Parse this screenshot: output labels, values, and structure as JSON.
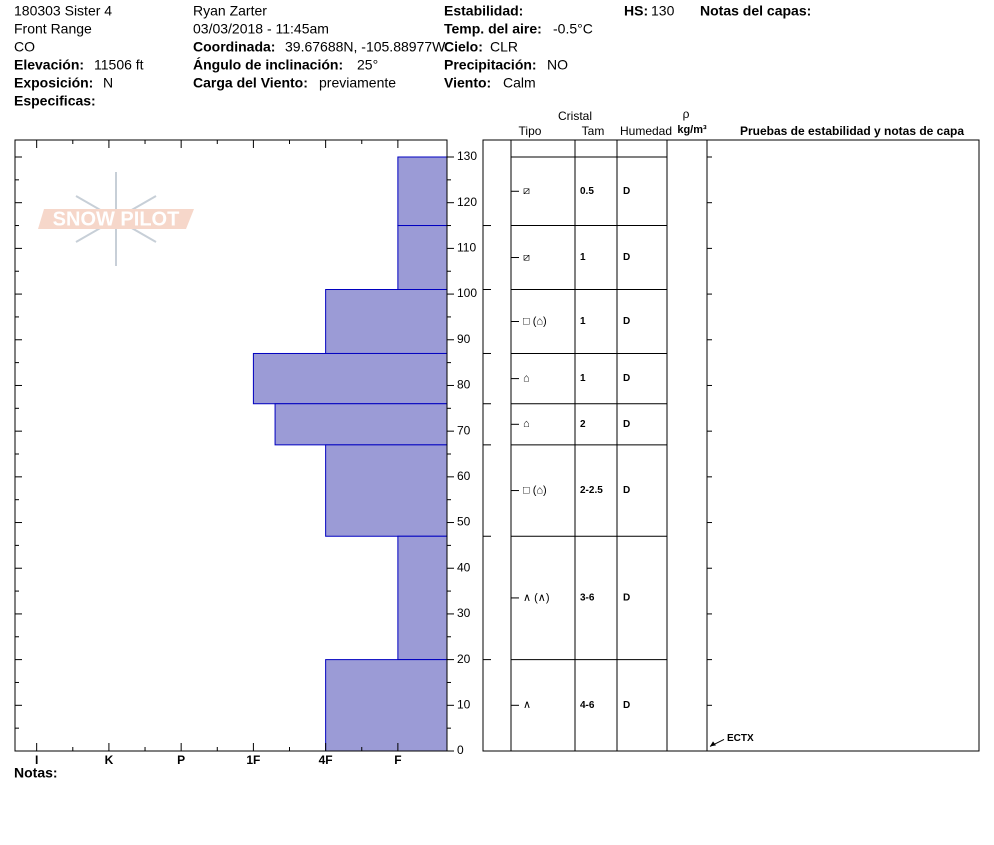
{
  "header": {
    "site": "180303 Sister 4",
    "range": "Front Range",
    "state": "CO",
    "elevation_label": "Elevación:",
    "elevation": "11506 ft",
    "aspect_label": "Exposición:",
    "aspect": "N",
    "specifics_label": "Especificas:",
    "observer": "Ryan Zarter",
    "datetime": "03/03/2018 - 11:45am",
    "coord_label": "Coordinada:",
    "coord": "39.67688N, -105.88977W",
    "slope_label": "Ángulo de inclinación:",
    "slope": "25°",
    "wind_load_label": "Carga del Viento:",
    "wind_load": "previamente",
    "stability_label": "Estabilidad:",
    "air_temp_label": "Temp. del aire:",
    "air_temp": "-0.5°C",
    "sky_label": "Cielo:",
    "sky": "CLR",
    "precip_label": "Precipitación:",
    "precip": "NO",
    "wind_label": "Viento:",
    "wind": "Calm",
    "hs_label": "HS:",
    "hs": "130",
    "layer_notes_label": "Notas del capas:"
  },
  "logo": "SNOW PILOT",
  "notes_label": "Notas:",
  "table_headers": {
    "crystal": "Cristal",
    "type": "Tipo",
    "size": "Tam",
    "moisture": "Humedad",
    "rho": "ρ",
    "density_unit": "kg/m³",
    "tests": "Pruebas de estabilidad y notas de capa"
  },
  "chart_data": {
    "type": "hardness_profile",
    "color": "#9b9bd6",
    "ylim": [
      0,
      130
    ],
    "yticks": [
      0,
      10,
      20,
      30,
      40,
      50,
      60,
      70,
      80,
      90,
      100,
      110,
      120,
      130
    ],
    "xlim": [
      6.3,
      0.32
    ],
    "xticks": [
      {
        "value": 6,
        "label": "I"
      },
      {
        "value": 5,
        "label": "K"
      },
      {
        "value": 4,
        "label": "P"
      },
      {
        "value": 3,
        "label": "1F"
      },
      {
        "value": 2,
        "label": "4F"
      },
      {
        "value": 1,
        "label": "F"
      }
    ],
    "layers": [
      {
        "top": 130,
        "bottom": 115,
        "hardness": 1,
        "crystal": "⧄",
        "size": "0.5",
        "moisture": "D"
      },
      {
        "top": 115,
        "bottom": 101,
        "hardness": 1,
        "crystal": "⧄",
        "size": "1",
        "moisture": "D"
      },
      {
        "top": 101,
        "bottom": 87,
        "hardness": 2,
        "crystal": "□ (⌂)",
        "size": "1",
        "moisture": "D"
      },
      {
        "top": 87,
        "bottom": 76,
        "hardness": 3,
        "crystal": "⌂",
        "size": "1",
        "moisture": "D"
      },
      {
        "top": 76,
        "bottom": 67,
        "hardness": 2.7,
        "crystal": "⌂",
        "size": "2",
        "moisture": "D"
      },
      {
        "top": 67,
        "bottom": 47,
        "hardness": 2,
        "crystal": "□ (⌂)",
        "size": "2-2.5",
        "moisture": "D"
      },
      {
        "top": 47,
        "bottom": 20,
        "hardness": 1,
        "crystal": "∧ (∧)",
        "size": "3-6",
        "moisture": "D"
      },
      {
        "top": 20,
        "bottom": 0,
        "hardness": 2,
        "crystal": "∧",
        "size": "4-6",
        "moisture": "D"
      }
    ],
    "stability_tests": [
      {
        "label": "ECTX",
        "height": 1
      }
    ]
  }
}
